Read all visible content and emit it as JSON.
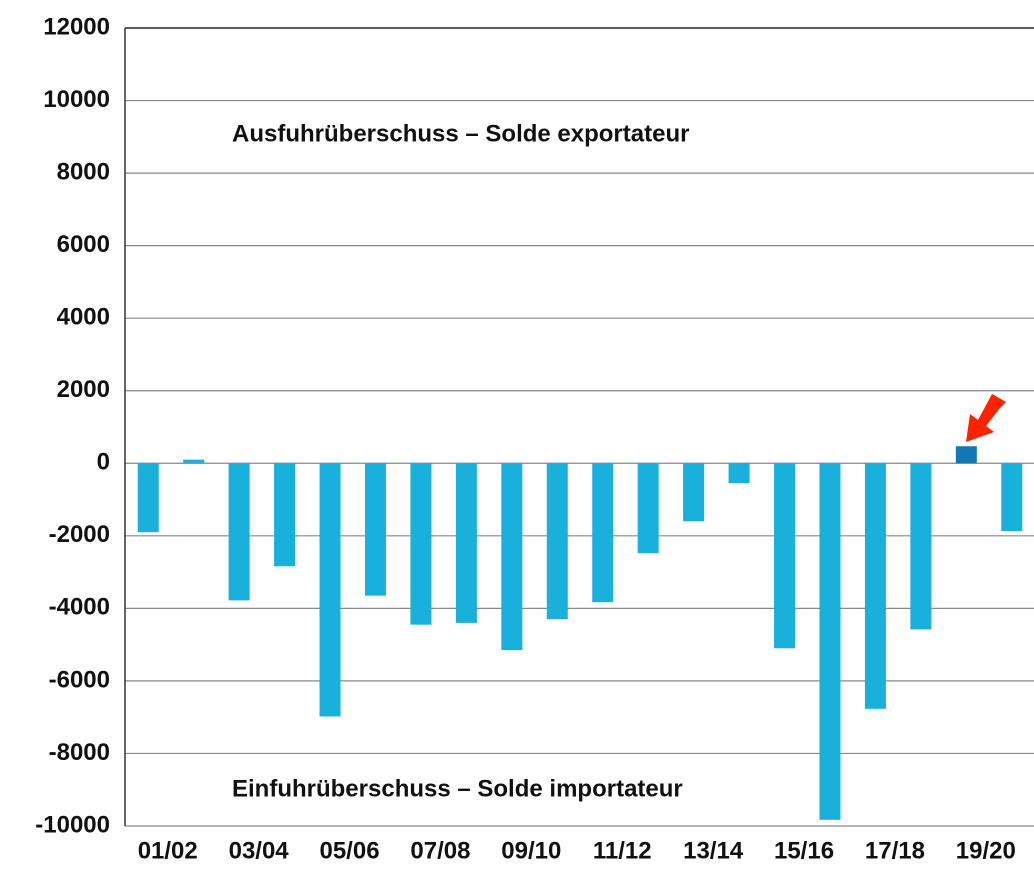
{
  "chart_data": {
    "type": "bar",
    "annotations": [
      "Ausfuhrüberschuss – Solde exportateur",
      "Einfuhrüberschuss – Solde importateur"
    ],
    "categories": [
      "01/02",
      null,
      "03/04",
      null,
      "05/06",
      null,
      "07/08",
      null,
      "09/10",
      null,
      "11/12",
      null,
      "13/14",
      null,
      "15/16",
      null,
      "17/18",
      null,
      "19/20",
      null
    ],
    "values": [
      -1900,
      100,
      -3780,
      -2840,
      -6980,
      -3650,
      -4450,
      -4400,
      -5150,
      -4300,
      -3830,
      -2480,
      -1600,
      -550,
      -5100,
      -9830,
      -6770,
      -4580,
      470,
      -1870
    ],
    "colors": [
      "#1ab0dc",
      "#1ab0dc",
      "#1ab0dc",
      "#1ab0dc",
      "#1ab0dc",
      "#1ab0dc",
      "#1ab0dc",
      "#1ab0dc",
      "#1ab0dc",
      "#1ab0dc",
      "#1ab0dc",
      "#1ab0dc",
      "#1ab0dc",
      "#1ab0dc",
      "#1ab0dc",
      "#1ab0dc",
      "#1ab0dc",
      "#1ab0dc",
      "#1478b4",
      "#1ab0dc"
    ],
    "ylim": [
      -10000,
      12000
    ],
    "yticks": [
      -10000,
      -8000,
      -6000,
      -4000,
      -2000,
      0,
      2000,
      4000,
      6000,
      8000,
      10000,
      12000
    ],
    "grid": true
  }
}
